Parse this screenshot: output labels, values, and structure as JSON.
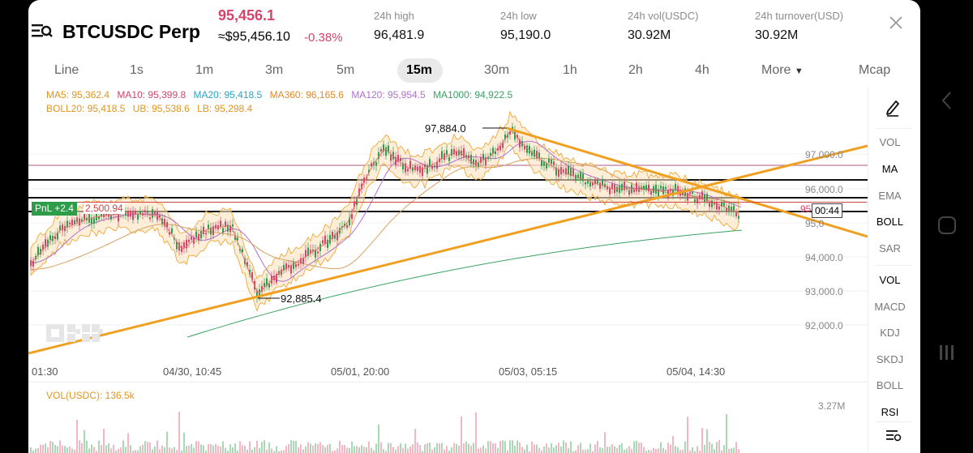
{
  "header": {
    "symbol": "BTCUSDC Perp",
    "last_price": "95,456.1",
    "approx_price": "≈$95,456.10",
    "change": "-0.38%",
    "stats": [
      {
        "label": "24h high",
        "value": "96,481.9"
      },
      {
        "label": "24h low",
        "value": "95,190.0"
      },
      {
        "label": "24h vol(USDC)",
        "value": "30.92M"
      },
      {
        "label": "24h turnover(USD)",
        "value": "30.92M"
      }
    ]
  },
  "timeframes": [
    "Line",
    "1s",
    "1m",
    "3m",
    "5m",
    "15m",
    "30m",
    "1h",
    "2h",
    "4h",
    "More",
    "Mcap"
  ],
  "active_timeframe": "15m",
  "legend": {
    "ma5": "MA5: 95,362.4",
    "ma10": "MA10: 95,399.8",
    "ma20": "MA20: 95,418.5",
    "ma360": "MA360: 96,165.6",
    "ma120": "MA120: 95,954.5",
    "ma1000": "MA1000: 94,922.5",
    "boll": "BOLL20: 95,418.5",
    "ub": "UB: 95,538.6",
    "lb": "LB: 95,298.4"
  },
  "price_axis": [
    "97,000.0",
    "96,000.0",
    "95,0",
    "94,000.0",
    "93,000.0",
    "92,000.0"
  ],
  "high_marker": "97,884.0",
  "low_marker": "92,885.4",
  "pnl_tag": "PnL +2.4",
  "pnl_value": "2,500.94",
  "countdown": "00:44",
  "price_tag_partial": "95",
  "time_axis": [
    "01:30",
    "04/30, 10:45",
    "05/01, 20:00",
    "05/03, 05:15",
    "05/04, 14:30"
  ],
  "volume": {
    "label": "VOL(USDC): 136.5k",
    "max": "3.27M"
  },
  "sidebar_top": [
    "VOL",
    "MA",
    "EMA",
    "BOLL",
    "SAR"
  ],
  "sidebar_bottom": [
    "VOL",
    "MACD",
    "KDJ",
    "SKDJ",
    "BOLL",
    "RSI"
  ],
  "colors": {
    "down": "#d6446a",
    "up": "#2e9d4a",
    "trendline": "#f0a020",
    "accent": "#000000"
  }
}
